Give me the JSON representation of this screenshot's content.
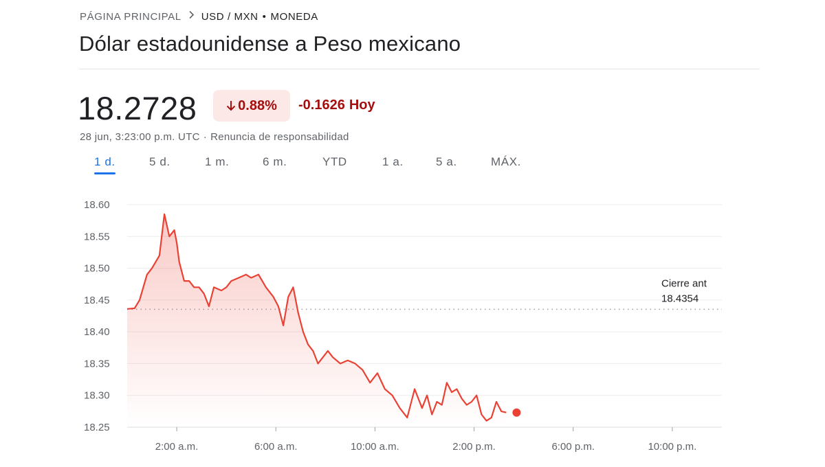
{
  "breadcrumb": {
    "home": "PÁGINA PRINCIPAL",
    "pair": "USD / MXN",
    "separator": "•",
    "category": "MONEDA"
  },
  "title": "Dólar estadounidense a Peso mexicano",
  "price": "18.2728",
  "change": {
    "percent": "0.88%",
    "absolute": "-0.1626",
    "period": "Hoy",
    "direction": "down"
  },
  "timestamp": "28 jun, 3:23:00 p.m. UTC",
  "timestamp_dot": "·",
  "disclaimer": "Renuncia de responsabilidad",
  "tabs": [
    "1 d.",
    "5 d.",
    "1 m.",
    "6 m.",
    "YTD",
    "1 a.",
    "5 a.",
    "MÁX."
  ],
  "active_tab": 0,
  "colors": {
    "line": "#e94235",
    "negative": "#a50e0e",
    "accent": "#1a73e8"
  },
  "chart_data": {
    "type": "area",
    "y_ticks": [
      "18.60",
      "18.55",
      "18.50",
      "18.45",
      "18.40",
      "18.35",
      "18.30",
      "18.25"
    ],
    "ylim": [
      18.25,
      18.6
    ],
    "x_ticks": [
      {
        "label": "2:00 a.m.",
        "hour": 2
      },
      {
        "label": "6:00 a.m.",
        "hour": 6
      },
      {
        "label": "10:00 a.m.",
        "hour": 10
      },
      {
        "label": "2:00 p.m.",
        "hour": 14
      },
      {
        "label": "6:00 p.m.",
        "hour": 18
      },
      {
        "label": "10:00 p.m.",
        "hour": 22
      }
    ],
    "xlim_hours": [
      0,
      24
    ],
    "previous_close": {
      "label": "Cierre ant",
      "value": 18.4354,
      "value_text": "18.4354"
    },
    "grid": true,
    "series": [
      {
        "x_hours": [
          0,
          0.3,
          0.5,
          0.8,
          1.0,
          1.3,
          1.5,
          1.7,
          1.9,
          2.0,
          2.1,
          2.3,
          2.5,
          2.7,
          2.9,
          3.1,
          3.3,
          3.5,
          3.8,
          4.0,
          4.2,
          4.5,
          4.8,
          5.0,
          5.3,
          5.6,
          5.9,
          6.1,
          6.3,
          6.5,
          6.7,
          6.9,
          7.1,
          7.3,
          7.5,
          7.7,
          7.9,
          8.1,
          8.3,
          8.6,
          8.9,
          9.2,
          9.5,
          9.8,
          10.1,
          10.4,
          10.7,
          11.0,
          11.3,
          11.6,
          11.9,
          12.1,
          12.3,
          12.5,
          12.7,
          12.9,
          13.1,
          13.3,
          13.5,
          13.7,
          13.9,
          14.1,
          14.3,
          14.5,
          14.7,
          14.9,
          15.1,
          15.3
        ],
        "values": [
          18.436,
          18.437,
          18.45,
          18.49,
          18.5,
          18.52,
          18.585,
          18.55,
          18.56,
          18.54,
          18.51,
          18.48,
          18.48,
          18.47,
          18.47,
          18.46,
          18.44,
          18.47,
          18.465,
          18.47,
          18.48,
          18.485,
          18.49,
          18.485,
          18.49,
          18.47,
          18.455,
          18.44,
          18.41,
          18.455,
          18.47,
          18.43,
          18.4,
          18.38,
          18.37,
          18.35,
          18.36,
          18.37,
          18.36,
          18.35,
          18.355,
          18.35,
          18.34,
          18.32,
          18.335,
          18.31,
          18.3,
          18.28,
          18.265,
          18.31,
          18.28,
          18.3,
          18.27,
          18.29,
          18.285,
          18.32,
          18.305,
          18.31,
          18.295,
          18.285,
          18.29,
          18.3,
          18.27,
          18.26,
          18.265,
          18.29,
          18.275,
          18.273
        ]
      }
    ]
  }
}
